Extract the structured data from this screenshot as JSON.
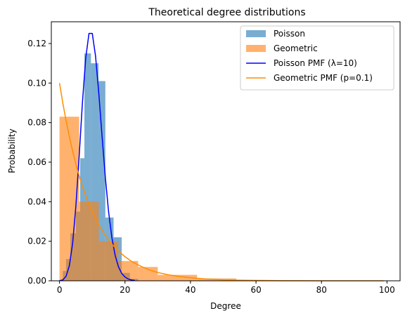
{
  "chart_data": {
    "type": "bar",
    "title": "Theoretical degree distributions",
    "xlabel": "Degree",
    "ylabel": "Probability",
    "xlim": [
      -2.5,
      104
    ],
    "ylim": [
      0,
      0.131
    ],
    "x_ticks": [
      0,
      20,
      40,
      60,
      80,
      100
    ],
    "y_ticks": [
      0.0,
      0.02,
      0.04,
      0.06,
      0.08,
      0.1,
      0.12
    ],
    "y_tick_labels": [
      "0.00",
      "0.02",
      "0.04",
      "0.06",
      "0.08",
      "0.10",
      "0.12"
    ],
    "grid": false,
    "legend_position": "top-right",
    "histograms": [
      {
        "name": "Poisson",
        "color": "#1f77b4",
        "opacity": 0.6,
        "bins": [
          {
            "x0": 1.0,
            "x1": 2.0,
            "y": 0.005
          },
          {
            "x0": 2.0,
            "x1": 3.3,
            "y": 0.011
          },
          {
            "x0": 3.3,
            "x1": 5.0,
            "y": 0.024
          },
          {
            "x0": 5.0,
            "x1": 6.3,
            "y": 0.035
          },
          {
            "x0": 6.3,
            "x1": 7.6,
            "y": 0.062
          },
          {
            "x0": 7.6,
            "x1": 9.6,
            "y": 0.115
          },
          {
            "x0": 9.6,
            "x1": 11.9,
            "y": 0.11
          },
          {
            "x0": 11.9,
            "x1": 14.0,
            "y": 0.101
          },
          {
            "x0": 14.0,
            "x1": 16.5,
            "y": 0.032
          },
          {
            "x0": 16.5,
            "x1": 19.0,
            "y": 0.022
          },
          {
            "x0": 19.0,
            "x1": 21.5,
            "y": 0.004
          },
          {
            "x0": 21.5,
            "x1": 24.0,
            "y": 0.001
          }
        ]
      },
      {
        "name": "Geometric",
        "color": "#ff7f0e",
        "opacity": 0.6,
        "bins": [
          {
            "x0": 0,
            "x1": 6,
            "y": 0.083
          },
          {
            "x0": 6,
            "x1": 12,
            "y": 0.04
          },
          {
            "x0": 12,
            "x1": 18,
            "y": 0.02
          },
          {
            "x0": 18,
            "x1": 24,
            "y": 0.01
          },
          {
            "x0": 24,
            "x1": 30,
            "y": 0.007
          },
          {
            "x0": 30,
            "x1": 42,
            "y": 0.003
          },
          {
            "x0": 42,
            "x1": 54,
            "y": 0.0012
          },
          {
            "x0": 54,
            "x1": 66,
            "y": 0.0004
          },
          {
            "x0": 66,
            "x1": 99,
            "y": 0.0001
          }
        ]
      }
    ],
    "lines": [
      {
        "name": "Poisson PMF (λ=10)",
        "color": "#0000ff",
        "x": [
          0,
          1,
          2,
          3,
          4,
          5,
          6,
          7,
          8,
          9,
          10,
          11,
          12,
          13,
          14,
          15,
          16,
          17,
          18,
          19,
          20,
          21,
          22,
          23
        ],
        "y": [
          5e-05,
          0.00045,
          0.0023,
          0.0076,
          0.0189,
          0.0378,
          0.0631,
          0.0901,
          0.1126,
          0.1251,
          0.1251,
          0.1137,
          0.0948,
          0.0729,
          0.0521,
          0.0347,
          0.0217,
          0.0128,
          0.0071,
          0.0037,
          0.0019,
          0.0009,
          0.0004,
          0.0002
        ]
      },
      {
        "name": "Geometric PMF (p=0.1)",
        "color": "#ff8c00",
        "x": [
          0,
          1,
          2,
          3,
          4,
          5,
          6,
          7,
          8,
          9,
          10,
          12,
          14,
          16,
          18,
          20,
          22,
          24,
          26,
          28,
          30,
          33,
          36,
          40,
          45,
          50,
          55,
          60,
          65,
          70,
          75,
          80,
          85,
          90,
          95,
          99
        ],
        "y": [
          0.1,
          0.09,
          0.081,
          0.0729,
          0.0656,
          0.059,
          0.0531,
          0.0478,
          0.043,
          0.0387,
          0.0349,
          0.0282,
          0.0229,
          0.0185,
          0.015,
          0.0122,
          0.0098,
          0.008,
          0.0065,
          0.0052,
          0.0042,
          0.0031,
          0.0023,
          0.0015,
          0.0009,
          0.0005,
          0.0003,
          0.0002,
          0.0001,
          6e-05,
          4e-05,
          2e-05,
          1e-05,
          1e-05,
          0.0,
          0.0
        ]
      }
    ],
    "legend": [
      {
        "label": "Poisson",
        "kind": "patch",
        "color": "#1f77b4"
      },
      {
        "label": "Geometric",
        "kind": "patch",
        "color": "#ff7f0e"
      },
      {
        "label": "Poisson PMF (λ=10)",
        "kind": "line",
        "color": "#0000ff"
      },
      {
        "label": "Geometric PMF (p=0.1)",
        "kind": "line",
        "color": "#ff8c00"
      }
    ]
  }
}
